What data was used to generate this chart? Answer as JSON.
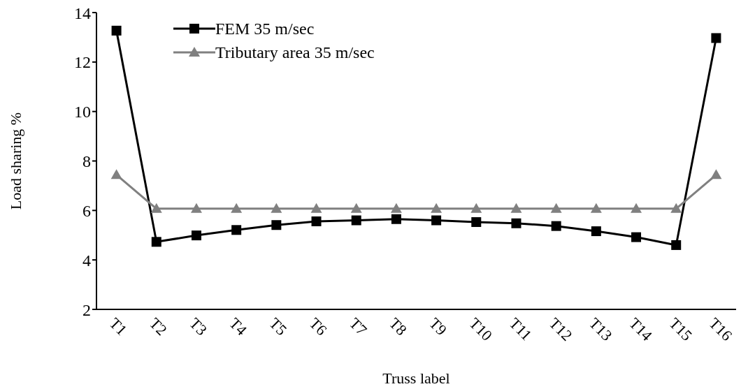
{
  "chart_data": {
    "type": "line",
    "xlabel": "Truss label",
    "ylabel": "Load sharing %",
    "categories": [
      "T1",
      "T2",
      "T3",
      "T4",
      "T5",
      "T6",
      "T7",
      "T8",
      "T9",
      "T10",
      "T11",
      "T12",
      "T13",
      "T14",
      "T15",
      "T16"
    ],
    "series": [
      {
        "name": "FEM 35 m/sec",
        "color": "#000000",
        "marker": "square",
        "values": [
          13.27,
          4.73,
          4.99,
          5.21,
          5.41,
          5.56,
          5.6,
          5.65,
          5.6,
          5.53,
          5.48,
          5.37,
          5.16,
          4.92,
          4.6,
          12.97
        ]
      },
      {
        "name": "Tributary area 35 m/sec",
        "color": "#808080",
        "marker": "triangle",
        "values": [
          7.44,
          6.07,
          6.07,
          6.07,
          6.07,
          6.07,
          6.07,
          6.07,
          6.07,
          6.07,
          6.07,
          6.07,
          6.07,
          6.07,
          6.07,
          7.44
        ]
      }
    ],
    "ylim": [
      2,
      14
    ],
    "yticks": [
      2,
      4,
      6,
      8,
      10,
      12,
      14
    ],
    "grid": false,
    "legend": "top left",
    "line_style": "solid"
  }
}
